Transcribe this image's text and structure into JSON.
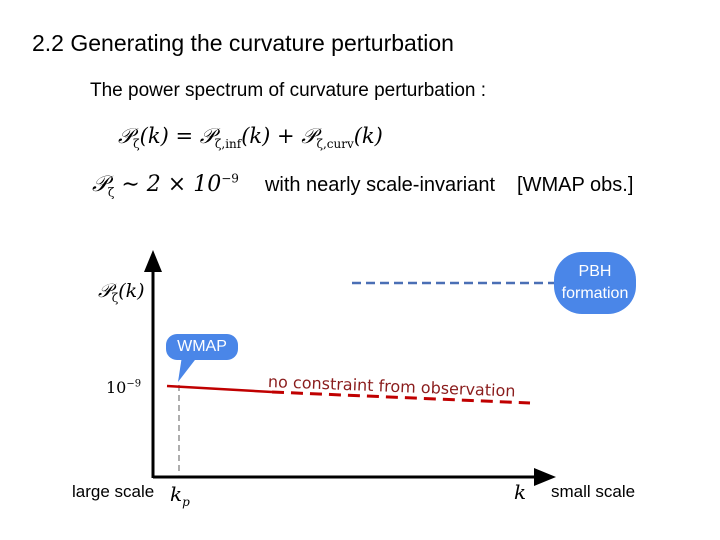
{
  "slide": {
    "title": "2.2 Generating the curvature perturbation",
    "subtitle": "The power spectrum of curvature perturbation :"
  },
  "equations": {
    "eq1": {
      "P1": "𝒫",
      "sub1": "ζ",
      "arg1": "(k) = ",
      "P2": "𝒫",
      "sub2": "ζ,inf",
      "arg2": "(k) + ",
      "P3": "𝒫",
      "sub3": "ζ,curv",
      "arg3": "(k)"
    },
    "eq2": {
      "P": "𝒫",
      "sub": "ζ",
      "rel": " ∼ 2 × 10",
      "exp": "−9",
      "note": "with nearly scale-invariant",
      "obs": "[WMAP obs.]"
    }
  },
  "plot": {
    "ylabel": {
      "P": "𝒫",
      "sub": "ζ",
      "arg": "(k)"
    },
    "ytick": {
      "base": "10",
      "exp": "−9"
    },
    "xtick": {
      "k": "k",
      "sub": "p"
    },
    "xlabel": "k",
    "large_scale": "large scale",
    "small_scale": "small scale",
    "pbh_label_line1": "PBH",
    "pbh_label_line2": "formation",
    "wmap_label": "WMAP",
    "no_constraint": "no constraint from observation",
    "colors": {
      "axis": "#000000",
      "wmap_line": "#c00000",
      "dashed_red": "#c00000",
      "pbh_line": "#4a6fb5",
      "bubble": "#4a86e8"
    }
  }
}
